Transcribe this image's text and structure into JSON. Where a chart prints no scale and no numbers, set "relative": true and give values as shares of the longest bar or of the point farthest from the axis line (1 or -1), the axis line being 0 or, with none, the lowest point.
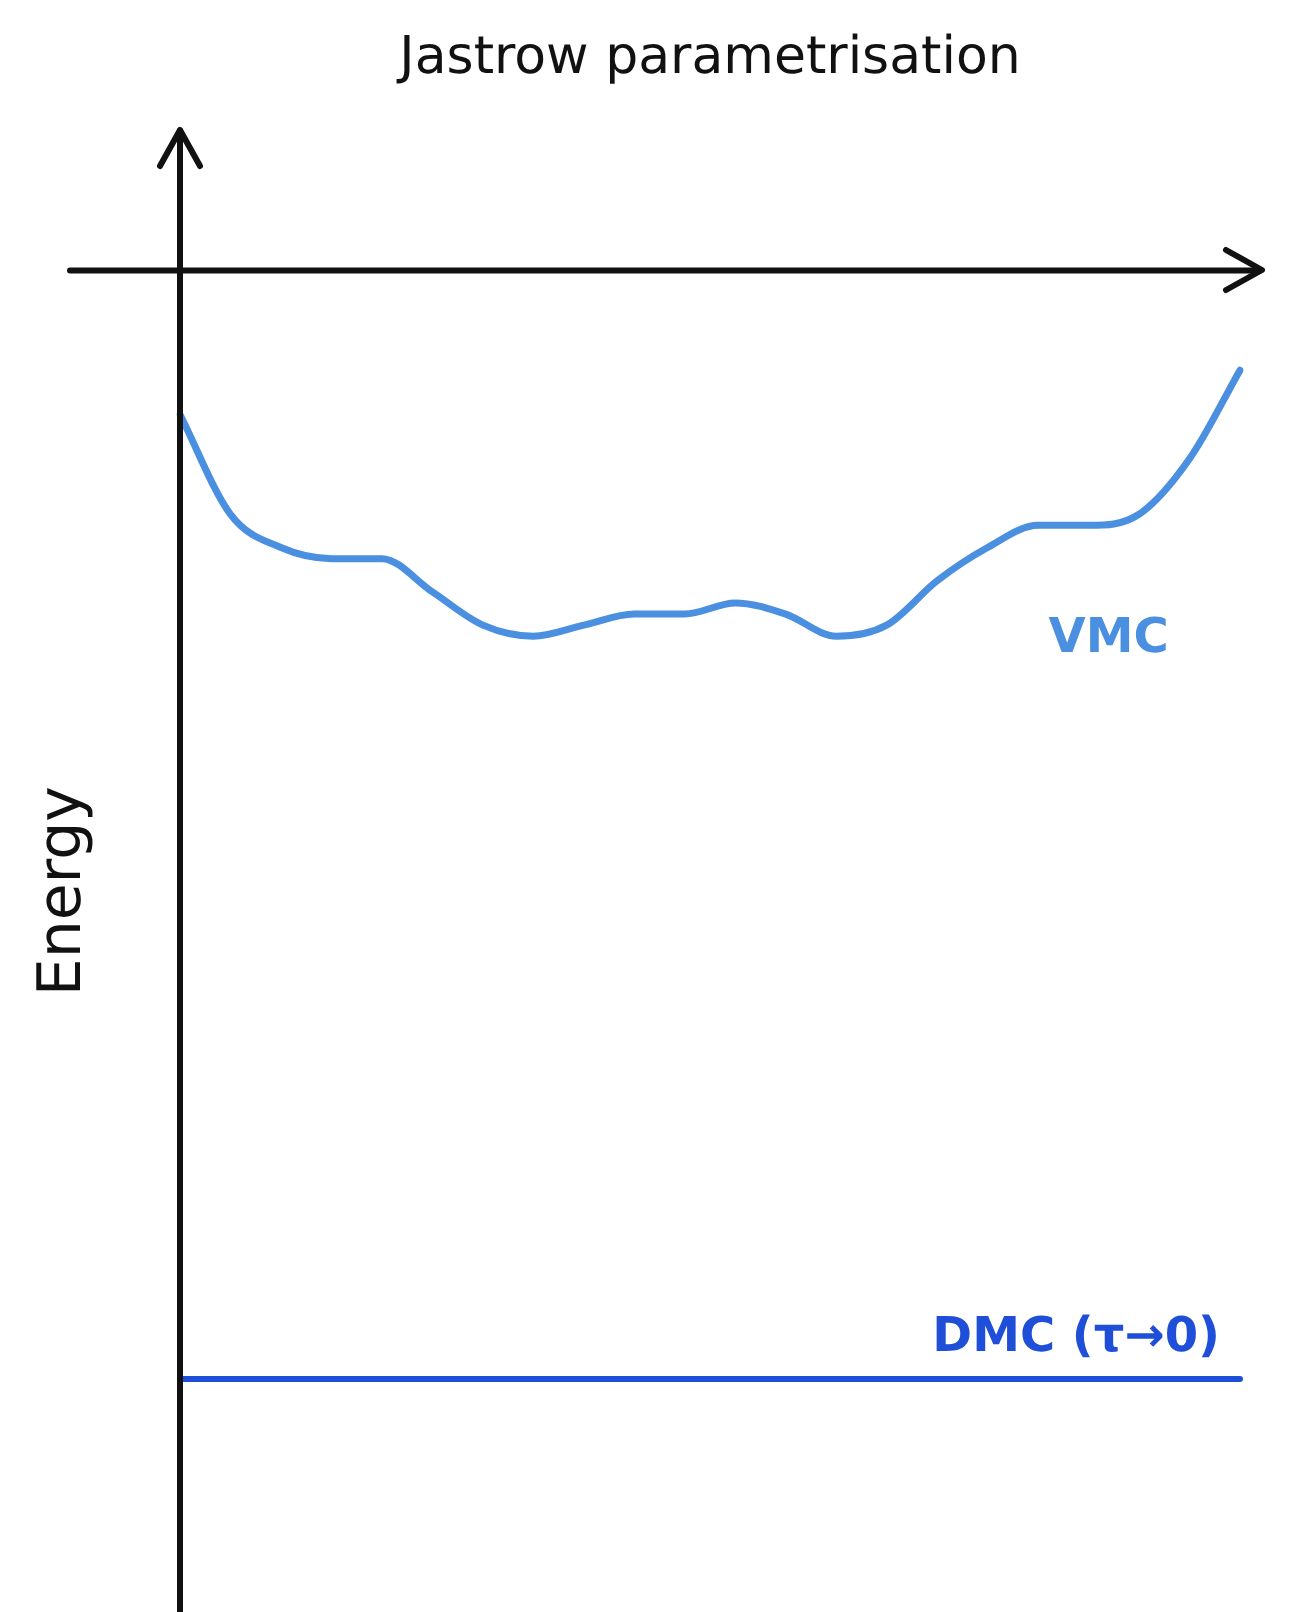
{
  "chart_data": {
    "type": "line",
    "relative": true,
    "xlabel": "Jastrow parametrisation",
    "ylabel": "Energy",
    "tick_labels": false,
    "grid": false,
    "legend": false,
    "marker": "none",
    "categories": [
      null,
      null,
      null,
      null,
      null,
      null,
      null,
      null,
      null,
      null,
      null,
      null,
      null,
      null,
      null,
      null,
      null,
      null,
      null,
      null,
      null,
      null
    ],
    "series": [
      {
        "name": "VMC",
        "color": "#4a8fe0",
        "values": [
          -0.13,
          -0.22,
          -0.25,
          -0.26,
          -0.26,
          -0.29,
          -0.32,
          -0.33,
          -0.32,
          -0.31,
          -0.31,
          -0.3,
          -0.31,
          -0.33,
          -0.32,
          -0.28,
          -0.25,
          -0.23,
          -0.23,
          -0.22,
          -0.17,
          -0.09
        ]
      },
      {
        "name": "DMC (τ→0)",
        "color": "#1f4fd8",
        "values": [
          -1,
          -1,
          -1,
          -1,
          -1,
          -1,
          -1,
          -1,
          -1,
          -1,
          -1,
          -1,
          -1,
          -1,
          -1,
          -1,
          -1,
          -1,
          -1,
          -1,
          -1,
          -1
        ]
      }
    ]
  }
}
